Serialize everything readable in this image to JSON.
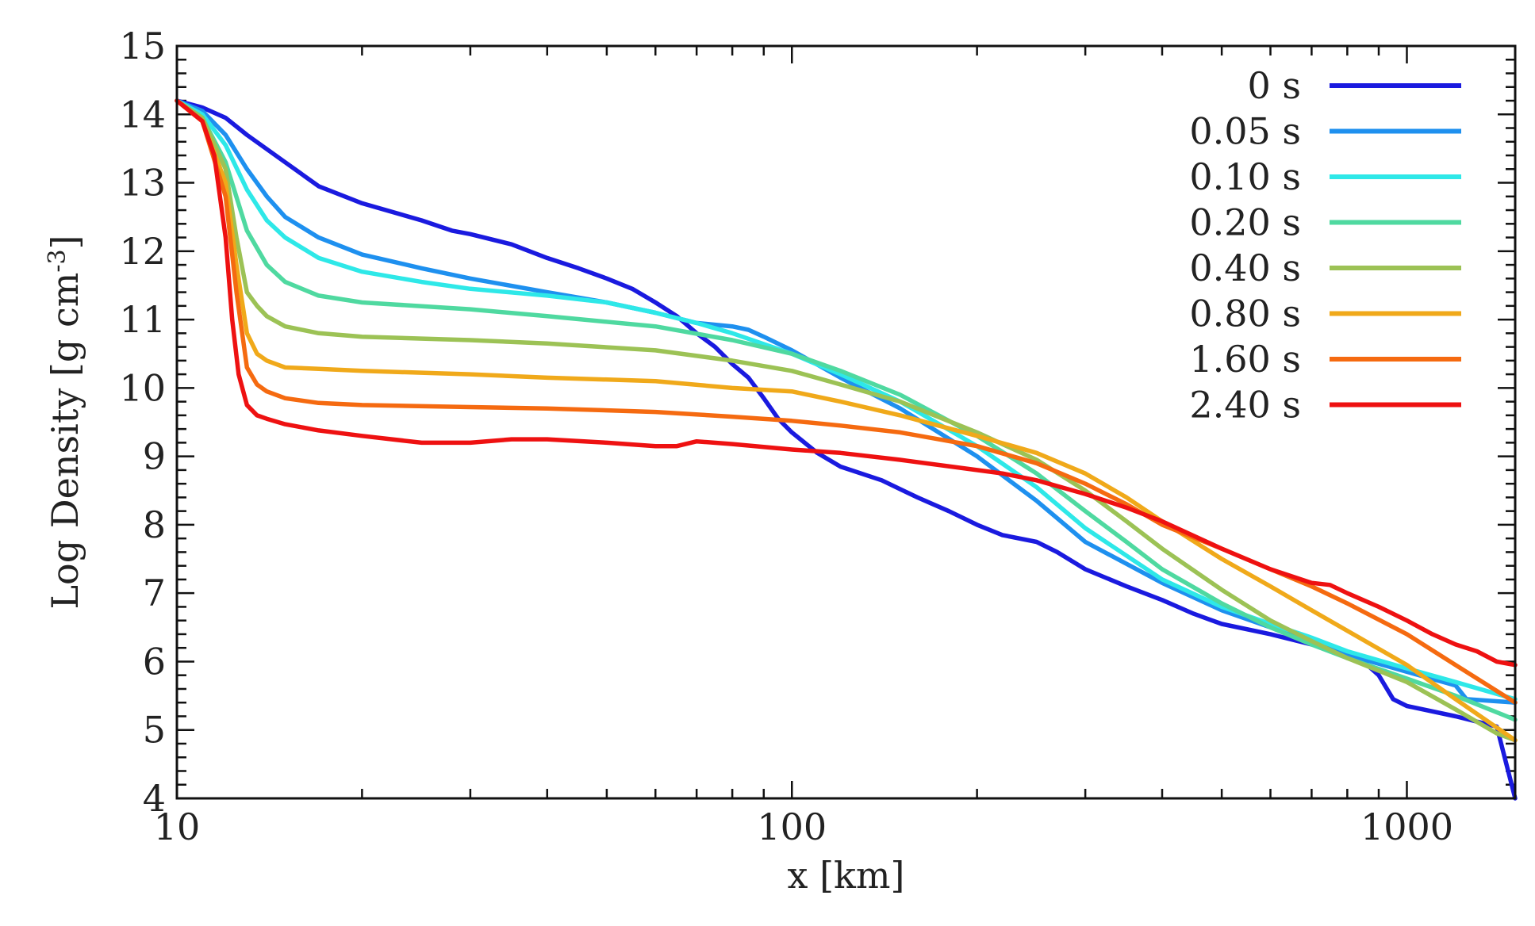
{
  "chart_data": {
    "type": "line",
    "title": "",
    "xlabel": "x [km]",
    "ylabel_main": "Log Density [g cm",
    "ylabel_sup": "-3",
    "ylabel_close": "]",
    "xscale": "log",
    "xlim": [
      10,
      1500
    ],
    "ylim": [
      4,
      15
    ],
    "grid": false,
    "legend_position": "top-right",
    "x_ticks": [
      {
        "value": 10,
        "label": "10"
      },
      {
        "value": 100,
        "label": "100"
      },
      {
        "value": 1000,
        "label": "1000"
      }
    ],
    "y_ticks": [
      {
        "value": 4,
        "label": "4"
      },
      {
        "value": 5,
        "label": "5"
      },
      {
        "value": 6,
        "label": "6"
      },
      {
        "value": 7,
        "label": "7"
      },
      {
        "value": 8,
        "label": "8"
      },
      {
        "value": 9,
        "label": "9"
      },
      {
        "value": 10,
        "label": "10"
      },
      {
        "value": 11,
        "label": "11"
      },
      {
        "value": 12,
        "label": "12"
      },
      {
        "value": 13,
        "label": "13"
      },
      {
        "value": 14,
        "label": "14"
      },
      {
        "value": 15,
        "label": "15"
      }
    ],
    "series": [
      {
        "name": "0 s",
        "color": "#1a1adf",
        "x": [
          10,
          11,
          12,
          13,
          15,
          17,
          20,
          25,
          28,
          30,
          35,
          40,
          45,
          50,
          55,
          60,
          65,
          70,
          75,
          80,
          85,
          90,
          95,
          100,
          110,
          120,
          140,
          160,
          180,
          200,
          220,
          250,
          270,
          300,
          350,
          400,
          450,
          500,
          600,
          700,
          800,
          850,
          900,
          950,
          1000,
          1200,
          1400,
          1500
        ],
        "y": [
          14.2,
          14.1,
          13.95,
          13.7,
          13.3,
          12.95,
          12.7,
          12.45,
          12.3,
          12.25,
          12.1,
          11.9,
          11.75,
          11.6,
          11.45,
          11.25,
          11.05,
          10.8,
          10.6,
          10.35,
          10.15,
          9.85,
          9.55,
          9.35,
          9.05,
          8.85,
          8.65,
          8.4,
          8.2,
          8.0,
          7.85,
          7.75,
          7.6,
          7.35,
          7.1,
          6.9,
          6.7,
          6.55,
          6.4,
          6.25,
          6.1,
          6.0,
          5.8,
          5.45,
          5.35,
          5.2,
          5.05,
          4.0
        ]
      },
      {
        "name": "0.05 s",
        "color": "#1e90ef",
        "x": [
          10,
          11,
          12,
          13,
          14,
          15,
          17,
          20,
          25,
          30,
          40,
          50,
          60,
          70,
          80,
          85,
          90,
          100,
          120,
          150,
          200,
          250,
          300,
          400,
          500,
          600,
          700,
          800,
          1000,
          1200,
          1250,
          1500
        ],
        "y": [
          14.2,
          14.05,
          13.7,
          13.2,
          12.8,
          12.5,
          12.2,
          11.95,
          11.75,
          11.6,
          11.4,
          11.25,
          11.1,
          10.95,
          10.9,
          10.85,
          10.75,
          10.55,
          10.15,
          9.7,
          9.0,
          8.35,
          7.75,
          7.15,
          6.75,
          6.5,
          6.3,
          6.1,
          5.85,
          5.65,
          5.45,
          5.4
        ]
      },
      {
        "name": "0.10 s",
        "color": "#2ee8e8",
        "x": [
          10,
          11,
          12,
          13,
          14,
          15,
          17,
          20,
          25,
          30,
          40,
          50,
          60,
          70,
          80,
          100,
          120,
          150,
          200,
          250,
          300,
          400,
          500,
          600,
          700,
          800,
          1000,
          1200,
          1500
        ],
        "y": [
          14.2,
          14.0,
          13.55,
          12.9,
          12.45,
          12.2,
          11.9,
          11.7,
          11.55,
          11.45,
          11.35,
          11.25,
          11.1,
          10.95,
          10.8,
          10.5,
          10.2,
          9.8,
          9.15,
          8.55,
          7.95,
          7.2,
          6.8,
          6.55,
          6.35,
          6.15,
          5.9,
          5.7,
          5.45
        ]
      },
      {
        "name": "0.20 s",
        "color": "#4fd9a0",
        "x": [
          10,
          11,
          12,
          13,
          14,
          15,
          17,
          20,
          30,
          40,
          60,
          80,
          100,
          120,
          150,
          200,
          250,
          300,
          350,
          400,
          500,
          600,
          700,
          800,
          1000,
          1200,
          1500
        ],
        "y": [
          14.2,
          13.95,
          13.3,
          12.3,
          11.8,
          11.55,
          11.35,
          11.25,
          11.15,
          11.05,
          10.9,
          10.7,
          10.5,
          10.25,
          9.9,
          9.3,
          8.75,
          8.2,
          7.75,
          7.35,
          6.85,
          6.5,
          6.25,
          6.05,
          5.75,
          5.5,
          5.15
        ]
      },
      {
        "name": "0.40 s",
        "color": "#9cc255",
        "x": [
          10,
          11,
          12,
          12.5,
          13,
          13.5,
          14,
          15,
          17,
          20,
          30,
          40,
          60,
          80,
          100,
          120,
          150,
          200,
          250,
          300,
          350,
          400,
          500,
          600,
          700,
          800,
          1000,
          1200,
          1400,
          1500
        ],
        "y": [
          14.2,
          13.95,
          13.2,
          12.2,
          11.4,
          11.2,
          11.05,
          10.9,
          10.8,
          10.75,
          10.7,
          10.65,
          10.55,
          10.4,
          10.25,
          10.05,
          9.8,
          9.35,
          8.95,
          8.5,
          8.05,
          7.65,
          7.05,
          6.6,
          6.3,
          6.05,
          5.7,
          5.3,
          4.95,
          4.85
        ]
      },
      {
        "name": "0.80 s",
        "color": "#f0a91a",
        "x": [
          10,
          11,
          12,
          12.5,
          13,
          13.5,
          14,
          15,
          17,
          20,
          30,
          40,
          60,
          80,
          100,
          120,
          150,
          200,
          250,
          300,
          350,
          400,
          500,
          600,
          700,
          800,
          1000,
          1200,
          1500
        ],
        "y": [
          14.2,
          13.9,
          13.0,
          11.8,
          10.8,
          10.5,
          10.4,
          10.3,
          10.28,
          10.25,
          10.2,
          10.15,
          10.1,
          10.0,
          9.95,
          9.8,
          9.6,
          9.3,
          9.05,
          8.75,
          8.4,
          8.05,
          7.5,
          7.1,
          6.75,
          6.45,
          5.95,
          5.45,
          4.85
        ]
      },
      {
        "name": "1.60 s",
        "color": "#f56a10",
        "x": [
          10,
          11,
          12,
          12.5,
          13,
          13.5,
          14,
          15,
          17,
          20,
          30,
          40,
          60,
          80,
          100,
          120,
          150,
          200,
          250,
          300,
          350,
          400,
          500,
          600,
          700,
          800,
          1000,
          1200,
          1500
        ],
        "y": [
          14.2,
          13.9,
          12.8,
          11.4,
          10.3,
          10.05,
          9.95,
          9.85,
          9.78,
          9.75,
          9.72,
          9.7,
          9.65,
          9.58,
          9.52,
          9.45,
          9.35,
          9.15,
          8.9,
          8.6,
          8.3,
          8.0,
          7.65,
          7.35,
          7.1,
          6.85,
          6.4,
          5.95,
          5.4
        ]
      },
      {
        "name": "2.40 s",
        "color": "#ee1111",
        "x": [
          10,
          11,
          11.5,
          12,
          12.3,
          12.6,
          13,
          13.5,
          14,
          15,
          17,
          20,
          25,
          30,
          35,
          40,
          50,
          60,
          65,
          70,
          80,
          100,
          120,
          150,
          200,
          220,
          250,
          300,
          350,
          400,
          500,
          600,
          700,
          750,
          800,
          900,
          1000,
          1100,
          1200,
          1300,
          1400,
          1500
        ],
        "y": [
          14.2,
          13.9,
          13.4,
          12.2,
          11.0,
          10.2,
          9.75,
          9.6,
          9.55,
          9.47,
          9.38,
          9.3,
          9.2,
          9.2,
          9.25,
          9.25,
          9.2,
          9.15,
          9.15,
          9.22,
          9.18,
          9.1,
          9.05,
          8.95,
          8.8,
          8.75,
          8.65,
          8.45,
          8.25,
          8.05,
          7.65,
          7.35,
          7.15,
          7.12,
          7.0,
          6.8,
          6.6,
          6.4,
          6.25,
          6.15,
          6.0,
          5.95
        ]
      }
    ]
  }
}
